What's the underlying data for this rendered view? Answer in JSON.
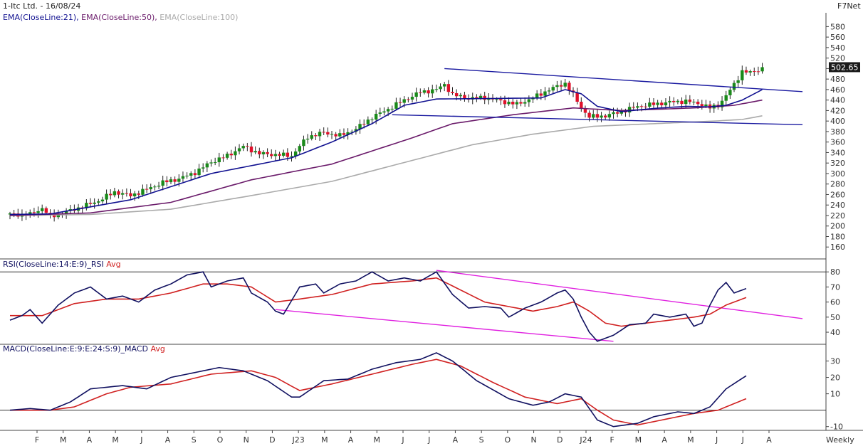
{
  "header": {
    "title": "1-Itc Ltd. - 16/08/24",
    "brand": "F7Net",
    "frequency": "Weekly"
  },
  "colors": {
    "up": "#1a8a1a",
    "down": "#e0102a",
    "ema21": "#101090",
    "ema50": "#6a1a6a",
    "ema100": "#aaaaaa",
    "trendline": "#1a1aa0",
    "rsi": "#101060",
    "rsi_avg": "#d02020",
    "rsi_trend": "#e020e0",
    "macd": "#101060",
    "macd_avg": "#d02020",
    "price_badge": "#1a1a1a"
  },
  "chart_data": [
    {
      "type": "candlestick",
      "legend": [
        {
          "label": "EMA(CloseLine:21),",
          "color": "#101090"
        },
        {
          "label": "EMA(CloseLine:50),",
          "color": "#6a1a6a"
        },
        {
          "label": "EMA(CloseLine:100)",
          "color": "#aaaaaa"
        }
      ],
      "ylim": [
        140,
        590
      ],
      "yticks": [
        160,
        180,
        200,
        220,
        240,
        260,
        280,
        300,
        320,
        340,
        360,
        380,
        400,
        420,
        440,
        460,
        480,
        500,
        520,
        540,
        560,
        580
      ],
      "last_price": "502.65",
      "x_labels": [
        "F",
        "M",
        "A",
        "M",
        "J",
        "A",
        "S",
        "O",
        "N",
        "D",
        "J23",
        "M",
        "A",
        "M",
        "J",
        "J",
        "A",
        "S",
        "O",
        "N",
        "D",
        "J24",
        "F",
        "M",
        "A",
        "M",
        "J",
        "J",
        "A"
      ],
      "close_keypoints": [
        [
          0,
          222
        ],
        [
          5,
          222
        ],
        [
          8,
          234
        ],
        [
          10,
          218
        ],
        [
          14,
          227
        ],
        [
          18,
          237
        ],
        [
          22,
          248
        ],
        [
          26,
          265
        ],
        [
          30,
          258
        ],
        [
          34,
          270
        ],
        [
          38,
          283
        ],
        [
          42,
          290
        ],
        [
          46,
          302
        ],
        [
          50,
          322
        ],
        [
          54,
          334
        ],
        [
          58,
          352
        ],
        [
          62,
          338
        ],
        [
          66,
          336
        ],
        [
          70,
          334
        ],
        [
          74,
          370
        ],
        [
          78,
          378
        ],
        [
          82,
          372
        ],
        [
          86,
          385
        ],
        [
          90,
          407
        ],
        [
          94,
          423
        ],
        [
          98,
          440
        ],
        [
          102,
          455
        ],
        [
          106,
          460
        ],
        [
          108,
          470
        ],
        [
          110,
          450
        ],
        [
          114,
          443
        ],
        [
          118,
          445
        ],
        [
          122,
          438
        ],
        [
          126,
          432
        ],
        [
          130,
          444
        ],
        [
          134,
          460
        ],
        [
          138,
          472
        ],
        [
          140,
          450
        ],
        [
          142,
          425
        ],
        [
          144,
          408
        ],
        [
          148,
          410
        ],
        [
          152,
          418
        ],
        [
          156,
          428
        ],
        [
          160,
          432
        ],
        [
          164,
          436
        ],
        [
          168,
          438
        ],
        [
          172,
          432
        ],
        [
          174,
          425
        ],
        [
          176,
          430
        ],
        [
          178,
          448
        ],
        [
          180,
          470
        ],
        [
          182,
          495
        ],
        [
          184,
          492
        ],
        [
          186,
          498
        ],
        [
          187,
          502.65
        ]
      ],
      "ema21_keypoints": [
        [
          0,
          222
        ],
        [
          10,
          223
        ],
        [
          30,
          250
        ],
        [
          50,
          300
        ],
        [
          70,
          330
        ],
        [
          80,
          360
        ],
        [
          90,
          395
        ],
        [
          98,
          430
        ],
        [
          106,
          442
        ],
        [
          120,
          443
        ],
        [
          132,
          444
        ],
        [
          138,
          460
        ],
        [
          142,
          452
        ],
        [
          146,
          428
        ],
        [
          152,
          418
        ],
        [
          160,
          424
        ],
        [
          168,
          428
        ],
        [
          174,
          427
        ],
        [
          178,
          430
        ],
        [
          182,
          440
        ],
        [
          187,
          460
        ]
      ],
      "ema50_keypoints": [
        [
          0,
          220
        ],
        [
          20,
          225
        ],
        [
          40,
          245
        ],
        [
          60,
          288
        ],
        [
          80,
          318
        ],
        [
          100,
          368
        ],
        [
          110,
          395
        ],
        [
          125,
          412
        ],
        [
          140,
          425
        ],
        [
          152,
          420
        ],
        [
          170,
          425
        ],
        [
          180,
          430
        ],
        [
          187,
          440
        ]
      ],
      "ema100_keypoints": [
        [
          0,
          220
        ],
        [
          20,
          222
        ],
        [
          40,
          232
        ],
        [
          60,
          258
        ],
        [
          80,
          285
        ],
        [
          100,
          325
        ],
        [
          115,
          355
        ],
        [
          130,
          375
        ],
        [
          145,
          390
        ],
        [
          160,
          395
        ],
        [
          175,
          400
        ],
        [
          182,
          403
        ],
        [
          187,
          410
        ]
      ],
      "trendlines": [
        {
          "from": [
            108,
            500
          ],
          "to": [
            197,
            456
          ]
        },
        {
          "from": [
            95,
            412
          ],
          "to": [
            197,
            393
          ]
        }
      ]
    },
    {
      "type": "line",
      "legend": [
        {
          "label": "RSI(CloseLine:14:E:9)_RSI",
          "color": "#101060"
        },
        {
          "label": "Avg",
          "color": "#d02020"
        }
      ],
      "ylim": [
        32,
        82
      ],
      "yticks": [
        40,
        50,
        60,
        70,
        80
      ],
      "reference_lines": [
        80
      ],
      "rsi_keypoints": [
        [
          0,
          48
        ],
        [
          3,
          51
        ],
        [
          5,
          55
        ],
        [
          8,
          46
        ],
        [
          12,
          58
        ],
        [
          16,
          66
        ],
        [
          20,
          70
        ],
        [
          24,
          62
        ],
        [
          28,
          64
        ],
        [
          32,
          60
        ],
        [
          36,
          68
        ],
        [
          40,
          72
        ],
        [
          44,
          78
        ],
        [
          48,
          80
        ],
        [
          50,
          70
        ],
        [
          54,
          74
        ],
        [
          58,
          76
        ],
        [
          60,
          66
        ],
        [
          64,
          60
        ],
        [
          66,
          54
        ],
        [
          68,
          52
        ],
        [
          72,
          70
        ],
        [
          76,
          72
        ],
        [
          78,
          66
        ],
        [
          82,
          72
        ],
        [
          86,
          74
        ],
        [
          90,
          80
        ],
        [
          94,
          74
        ],
        [
          98,
          76
        ],
        [
          102,
          74
        ],
        [
          106,
          80
        ],
        [
          110,
          65
        ],
        [
          114,
          56
        ],
        [
          118,
          57
        ],
        [
          122,
          56
        ],
        [
          124,
          50
        ],
        [
          128,
          56
        ],
        [
          132,
          60
        ],
        [
          136,
          66
        ],
        [
          138,
          68
        ],
        [
          140,
          62
        ],
        [
          142,
          50
        ],
        [
          144,
          40
        ],
        [
          146,
          34
        ],
        [
          150,
          38
        ],
        [
          154,
          45
        ],
        [
          158,
          46
        ],
        [
          160,
          52
        ],
        [
          164,
          50
        ],
        [
          168,
          52
        ],
        [
          170,
          44
        ],
        [
          172,
          46
        ],
        [
          174,
          58
        ],
        [
          176,
          68
        ],
        [
          178,
          73
        ],
        [
          180,
          66
        ],
        [
          183,
          69
        ]
      ],
      "avg_keypoints": [
        [
          0,
          51
        ],
        [
          8,
          51
        ],
        [
          16,
          59
        ],
        [
          24,
          62
        ],
        [
          32,
          62
        ],
        [
          40,
          66
        ],
        [
          48,
          72
        ],
        [
          54,
          72
        ],
        [
          60,
          70
        ],
        [
          66,
          60
        ],
        [
          72,
          62
        ],
        [
          80,
          65
        ],
        [
          90,
          72
        ],
        [
          100,
          74
        ],
        [
          106,
          76
        ],
        [
          112,
          68
        ],
        [
          118,
          60
        ],
        [
          126,
          56
        ],
        [
          130,
          54
        ],
        [
          136,
          57
        ],
        [
          140,
          60
        ],
        [
          144,
          54
        ],
        [
          148,
          46
        ],
        [
          152,
          44
        ],
        [
          158,
          46
        ],
        [
          164,
          48
        ],
        [
          170,
          50
        ],
        [
          174,
          52
        ],
        [
          178,
          58
        ],
        [
          183,
          63
        ]
      ],
      "trendlines": [
        {
          "from": [
            106,
            81
          ],
          "to": [
            197,
            49
          ]
        },
        {
          "from": [
            66,
            55
          ],
          "to": [
            150,
            34
          ]
        }
      ]
    },
    {
      "type": "line",
      "legend": [
        {
          "label": "MACD(CloseLine:E:9:E:24:S:9)_MACD",
          "color": "#101060"
        },
        {
          "label": "Avg",
          "color": "#d02020"
        }
      ],
      "ylim": [
        -11,
        35
      ],
      "yticks": [
        -10,
        10,
        20,
        30
      ],
      "reference_lines": [
        0
      ],
      "macd_keypoints": [
        [
          0,
          0
        ],
        [
          5,
          1
        ],
        [
          10,
          0
        ],
        [
          15,
          5
        ],
        [
          20,
          13
        ],
        [
          24,
          14
        ],
        [
          28,
          15
        ],
        [
          34,
          13
        ],
        [
          40,
          20
        ],
        [
          46,
          23
        ],
        [
          52,
          26
        ],
        [
          58,
          24
        ],
        [
          64,
          18
        ],
        [
          70,
          8
        ],
        [
          72,
          8
        ],
        [
          78,
          18
        ],
        [
          84,
          19
        ],
        [
          90,
          25
        ],
        [
          96,
          29
        ],
        [
          102,
          31
        ],
        [
          106,
          35
        ],
        [
          110,
          30
        ],
        [
          116,
          18
        ],
        [
          124,
          7
        ],
        [
          130,
          3
        ],
        [
          134,
          5
        ],
        [
          138,
          10
        ],
        [
          142,
          8
        ],
        [
          146,
          -6
        ],
        [
          150,
          -10
        ],
        [
          156,
          -8
        ],
        [
          160,
          -4
        ],
        [
          166,
          -1
        ],
        [
          170,
          -2
        ],
        [
          174,
          2
        ],
        [
          178,
          13
        ],
        [
          183,
          21
        ]
      ],
      "avg_keypoints": [
        [
          0,
          0
        ],
        [
          10,
          0
        ],
        [
          16,
          2
        ],
        [
          24,
          10
        ],
        [
          30,
          14
        ],
        [
          40,
          16
        ],
        [
          50,
          22
        ],
        [
          60,
          24
        ],
        [
          66,
          20
        ],
        [
          72,
          12
        ],
        [
          80,
          16
        ],
        [
          90,
          22
        ],
        [
          100,
          28
        ],
        [
          106,
          31
        ],
        [
          112,
          27
        ],
        [
          120,
          17
        ],
        [
          128,
          8
        ],
        [
          136,
          4
        ],
        [
          142,
          7
        ],
        [
          146,
          0
        ],
        [
          150,
          -6
        ],
        [
          156,
          -9
        ],
        [
          162,
          -6
        ],
        [
          170,
          -2
        ],
        [
          176,
          0
        ],
        [
          183,
          7
        ]
      ]
    }
  ]
}
